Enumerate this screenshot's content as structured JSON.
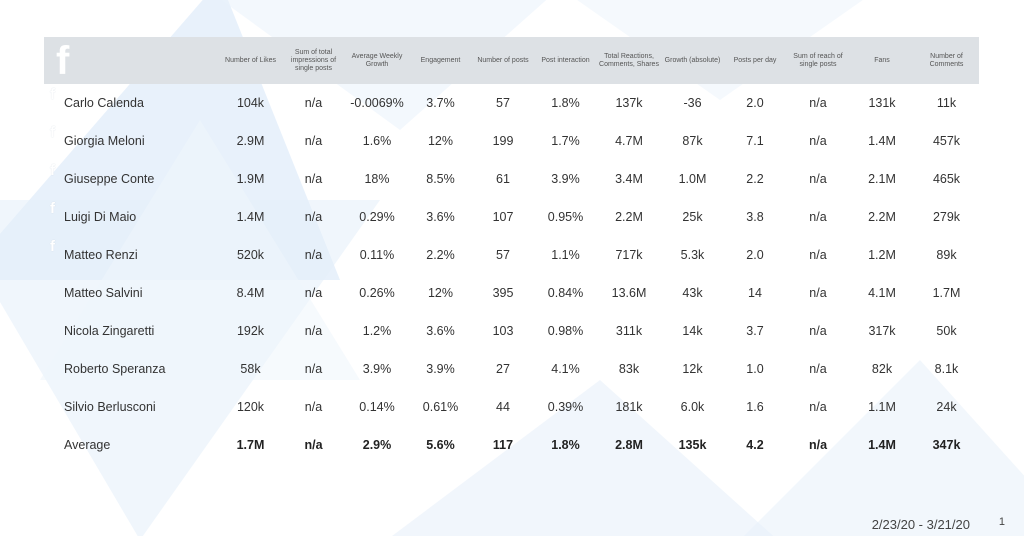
{
  "header": {
    "logo_icon": "facebook-f-icon",
    "columns": [
      "Number of Likes",
      "Sum of total impressions of single posts",
      "Average Weekly Growth",
      "Engagement",
      "Number of posts",
      "Post interaction",
      "Total Reactions, Comments, Shares",
      "Growth (absolute)",
      "Posts per day",
      "Sum of reach of single posts",
      "Fans",
      "Number of Comments"
    ]
  },
  "rows": [
    {
      "name": "Carlo Calenda",
      "values": [
        "104k",
        "n/a",
        "-0.0069%",
        "3.7%",
        "57",
        "1.8%",
        "137k",
        "-36",
        "2.0",
        "n/a",
        "131k",
        "11k"
      ]
    },
    {
      "name": "Giorgia Meloni",
      "values": [
        "2.9M",
        "n/a",
        "1.6%",
        "12%",
        "199",
        "1.7%",
        "4.7M",
        "87k",
        "7.1",
        "n/a",
        "1.4M",
        "457k"
      ]
    },
    {
      "name": "Giuseppe Conte",
      "values": [
        "1.9M",
        "n/a",
        "18%",
        "8.5%",
        "61",
        "3.9%",
        "3.4M",
        "1.0M",
        "2.2",
        "n/a",
        "2.1M",
        "465k"
      ]
    },
    {
      "name": "Luigi Di Maio",
      "values": [
        "1.4M",
        "n/a",
        "0.29%",
        "3.6%",
        "107",
        "0.95%",
        "2.2M",
        "25k",
        "3.8",
        "n/a",
        "2.2M",
        "279k"
      ]
    },
    {
      "name": "Matteo Renzi",
      "values": [
        "520k",
        "n/a",
        "0.11%",
        "2.2%",
        "57",
        "1.1%",
        "717k",
        "5.3k",
        "2.0",
        "n/a",
        "1.2M",
        "89k"
      ]
    },
    {
      "name": "Matteo Salvini",
      "values": [
        "8.4M",
        "n/a",
        "0.26%",
        "12%",
        "395",
        "0.84%",
        "13.6M",
        "43k",
        "14",
        "n/a",
        "4.1M",
        "1.7M"
      ]
    },
    {
      "name": "Nicola Zingaretti",
      "values": [
        "192k",
        "n/a",
        "1.2%",
        "3.6%",
        "103",
        "0.98%",
        "311k",
        "14k",
        "3.7",
        "n/a",
        "317k",
        "50k"
      ]
    },
    {
      "name": "Roberto Speranza",
      "values": [
        "58k",
        "n/a",
        "3.9%",
        "3.9%",
        "27",
        "4.1%",
        "83k",
        "12k",
        "1.0",
        "n/a",
        "82k",
        "8.1k"
      ]
    },
    {
      "name": "Silvio Berlusconi",
      "values": [
        "120k",
        "n/a",
        "0.14%",
        "0.61%",
        "44",
        "0.39%",
        "181k",
        "6.0k",
        "1.6",
        "n/a",
        "1.1M",
        "24k"
      ]
    }
  ],
  "average": {
    "name": "Average",
    "values": [
      "1.7M",
      "n/a",
      "2.9%",
      "5.6%",
      "117",
      "1.8%",
      "2.8M",
      "135k",
      "4.2",
      "n/a",
      "1.4M",
      "347k"
    ]
  },
  "footer": {
    "date_range": "2/23/20 - 3/21/20",
    "page_number": "1"
  },
  "colors": {
    "header_bg": "#dde1e5",
    "background_accent": "#dbe9f7"
  }
}
